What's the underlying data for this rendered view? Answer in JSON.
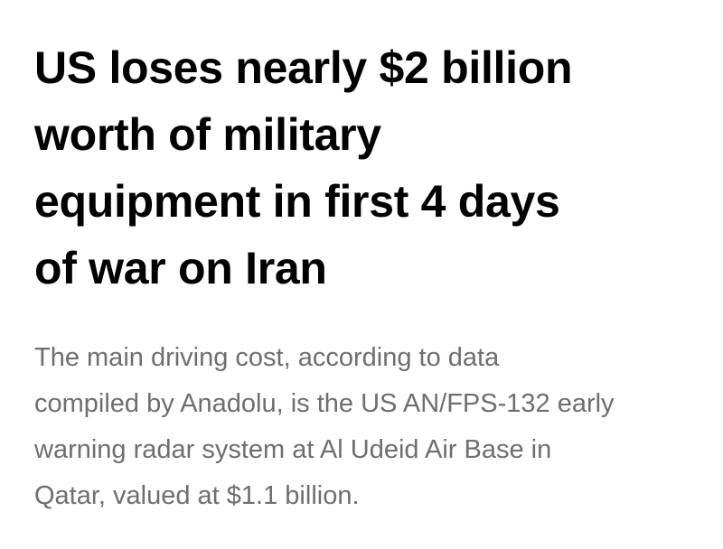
{
  "article": {
    "headline_lines": [
      "US loses nearly $2 billion",
      "worth of military",
      "equipment in first 4 days",
      "of war on Iran"
    ],
    "summary_lines": [
      "The main driving cost, according to data",
      "compiled by Anadolu, is the US AN/FPS-132 early",
      "warning radar system at Al Udeid Air Base in",
      "Qatar, valued at $1.1 billion."
    ]
  }
}
